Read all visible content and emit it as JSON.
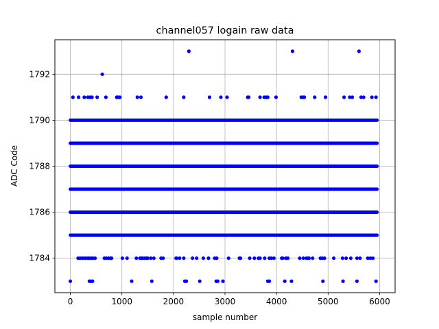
{
  "chart_data": {
    "type": "scatter",
    "title": "channel057 logain raw data",
    "xlabel": "sample number",
    "ylabel": "ADC Code",
    "xlim": [
      -300,
      6300
    ],
    "ylim": [
      1782.5,
      1793.5
    ],
    "xticks": [
      0,
      1000,
      2000,
      3000,
      4000,
      5000,
      6000
    ],
    "xtick_labels": [
      "0",
      "1000",
      "2000",
      "3000",
      "4000",
      "5000",
      "6000"
    ],
    "yticks": [
      1784,
      1786,
      1788,
      1790,
      1792
    ],
    "ytick_labels": [
      "1784",
      "1786",
      "1788",
      "1790",
      "1792"
    ],
    "grid": true,
    "marker_color": "#0000ff",
    "sample_range": [
      0,
      5950
    ],
    "series": [
      {
        "dense_levels": [
          1785,
          1786,
          1787,
          1788,
          1789,
          1790
        ],
        "sparse_levels": {
          "1784": [
            150,
            190,
            230,
            260,
            300,
            340,
            370,
            410,
            440,
            480,
            660,
            700,
            740,
            780,
            800,
            1010,
            1100,
            1280,
            1350,
            1380,
            1400,
            1440,
            1480,
            1500,
            1560,
            1620,
            1760,
            1800,
            2050,
            2060,
            2120,
            2200,
            2370,
            2450,
            2580,
            2680,
            2800,
            2840,
            3070,
            3280,
            3300,
            3480,
            3570,
            3650,
            3680,
            3770,
            3860,
            3900,
            3950,
            4100,
            4120,
            4180,
            4220,
            4450,
            4520,
            4580,
            4610,
            4630,
            4700,
            4850,
            4890,
            4930,
            5110,
            5280,
            5350,
            5440,
            5560,
            5620,
            5770,
            5820,
            5870
          ],
          "1783": [
            0,
            370,
            400,
            430,
            1190,
            1580,
            2220,
            2250,
            2510,
            2830,
            2860,
            2960,
            3830,
            3860,
            4160,
            4290,
            4900,
            5290,
            5560,
            5930
          ],
          "1791": [
            50,
            160,
            270,
            340,
            380,
            420,
            520,
            690,
            900,
            920,
            960,
            1300,
            1370,
            1860,
            2200,
            2700,
            2920,
            3040,
            3440,
            3460,
            3680,
            3760,
            3800,
            3830,
            3990,
            4480,
            4520,
            4540,
            4740,
            4950,
            5310,
            5420,
            5470,
            5640,
            5690,
            5850,
            5930
          ],
          "1792": [
            620
          ],
          "1793": [
            2300,
            4310,
            5600
          ]
        }
      }
    ]
  }
}
